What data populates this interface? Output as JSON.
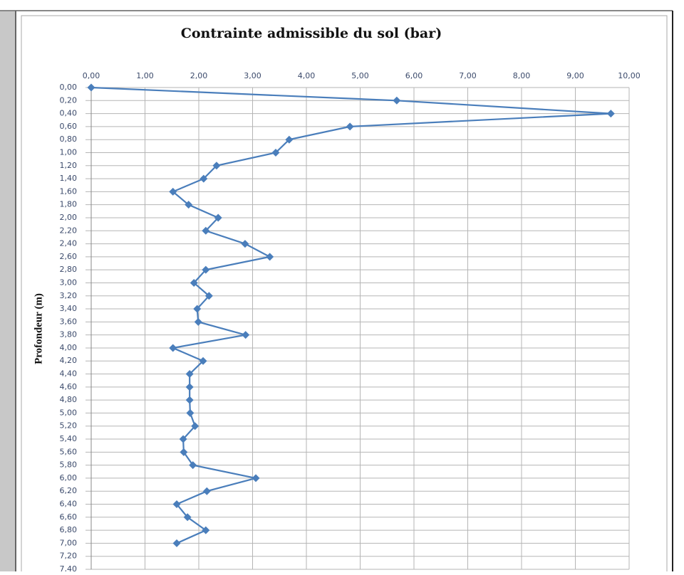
{
  "chart_data": {
    "type": "line",
    "title": "Contrainte admissible du sol (bar)",
    "y_label": "Profondeur (m)",
    "y_inverted": true,
    "color": "#4a7ebb",
    "grid": true,
    "y": [
      0,
      0.2,
      0.4,
      0.6,
      0.8,
      1.0,
      1.2,
      1.4,
      1.6,
      1.8,
      2.0,
      2.2,
      2.4,
      2.6,
      2.8,
      3.0,
      3.2,
      3.4,
      3.6,
      3.8,
      4.0,
      4.2,
      4.4,
      4.6,
      4.8,
      5.0,
      5.2,
      5.4,
      5.6,
      5.8,
      6.0,
      6.2,
      6.4,
      6.6,
      6.8,
      7.0
    ],
    "values": [
      0,
      5.68,
      9.66,
      4.81,
      3.68,
      3.43,
      2.33,
      2.09,
      1.52,
      1.81,
      2.36,
      2.13,
      2.86,
      3.32,
      2.13,
      1.91,
      2.19,
      1.97,
      1.99,
      2.87,
      1.52,
      2.08,
      1.83,
      1.83,
      1.83,
      1.84,
      1.93,
      1.71,
      1.72,
      1.89,
      3.06,
      2.15,
      1.59,
      1.79,
      2.13,
      1.59
    ],
    "xlim": [
      0,
      10
    ],
    "xticks": [
      {
        "value": 0,
        "label": "0,00"
      },
      {
        "value": 1,
        "label": "1,00"
      },
      {
        "value": 2,
        "label": "2,00"
      },
      {
        "value": 3,
        "label": "3,00"
      },
      {
        "value": 4,
        "label": "4,00"
      },
      {
        "value": 5,
        "label": "5,00"
      },
      {
        "value": 6,
        "label": "6,00"
      },
      {
        "value": 7,
        "label": "7,00"
      },
      {
        "value": 8,
        "label": "8,00"
      },
      {
        "value": 9,
        "label": "9,00"
      },
      {
        "value": 10,
        "label": "10,00"
      }
    ],
    "ylim": [
      0,
      7.4
    ],
    "yticks": [
      {
        "value": 0,
        "label": "0,00"
      },
      {
        "value": 0.2,
        "label": "0,20"
      },
      {
        "value": 0.4,
        "label": "0,40"
      },
      {
        "value": 0.6,
        "label": "0,60"
      },
      {
        "value": 0.8,
        "label": "0,80"
      },
      {
        "value": 1.0,
        "label": "1,00"
      },
      {
        "value": 1.2,
        "label": "1,20"
      },
      {
        "value": 1.4,
        "label": "1,40"
      },
      {
        "value": 1.6,
        "label": "1,60"
      },
      {
        "value": 1.8,
        "label": "1,80"
      },
      {
        "value": 2.0,
        "label": "2,00"
      },
      {
        "value": 2.2,
        "label": "2,20"
      },
      {
        "value": 2.4,
        "label": "2,40"
      },
      {
        "value": 2.6,
        "label": "2,60"
      },
      {
        "value": 2.8,
        "label": "2,80"
      },
      {
        "value": 3.0,
        "label": "3,00"
      },
      {
        "value": 3.2,
        "label": "3,20"
      },
      {
        "value": 3.4,
        "label": "3,40"
      },
      {
        "value": 3.6,
        "label": "3,60"
      },
      {
        "value": 3.8,
        "label": "3,80"
      },
      {
        "value": 4.0,
        "label": "4,00"
      },
      {
        "value": 4.2,
        "label": "4,20"
      },
      {
        "value": 4.4,
        "label": "4,40"
      },
      {
        "value": 4.6,
        "label": "4,60"
      },
      {
        "value": 4.8,
        "label": "4,80"
      },
      {
        "value": 5.0,
        "label": "5,00"
      },
      {
        "value": 5.2,
        "label": "5,20"
      },
      {
        "value": 5.4,
        "label": "5,40"
      },
      {
        "value": 5.6,
        "label": "5,60"
      },
      {
        "value": 5.8,
        "label": "5,80"
      },
      {
        "value": 6.0,
        "label": "6,00"
      },
      {
        "value": 6.2,
        "label": "6,20"
      },
      {
        "value": 6.4,
        "label": "6,40"
      },
      {
        "value": 6.6,
        "label": "6,60"
      },
      {
        "value": 6.8,
        "label": "6,80"
      },
      {
        "value": 7.0,
        "label": "7,00"
      },
      {
        "value": 7.2,
        "label": "7,20"
      },
      {
        "value": 7.4,
        "label": "7,40"
      }
    ]
  }
}
